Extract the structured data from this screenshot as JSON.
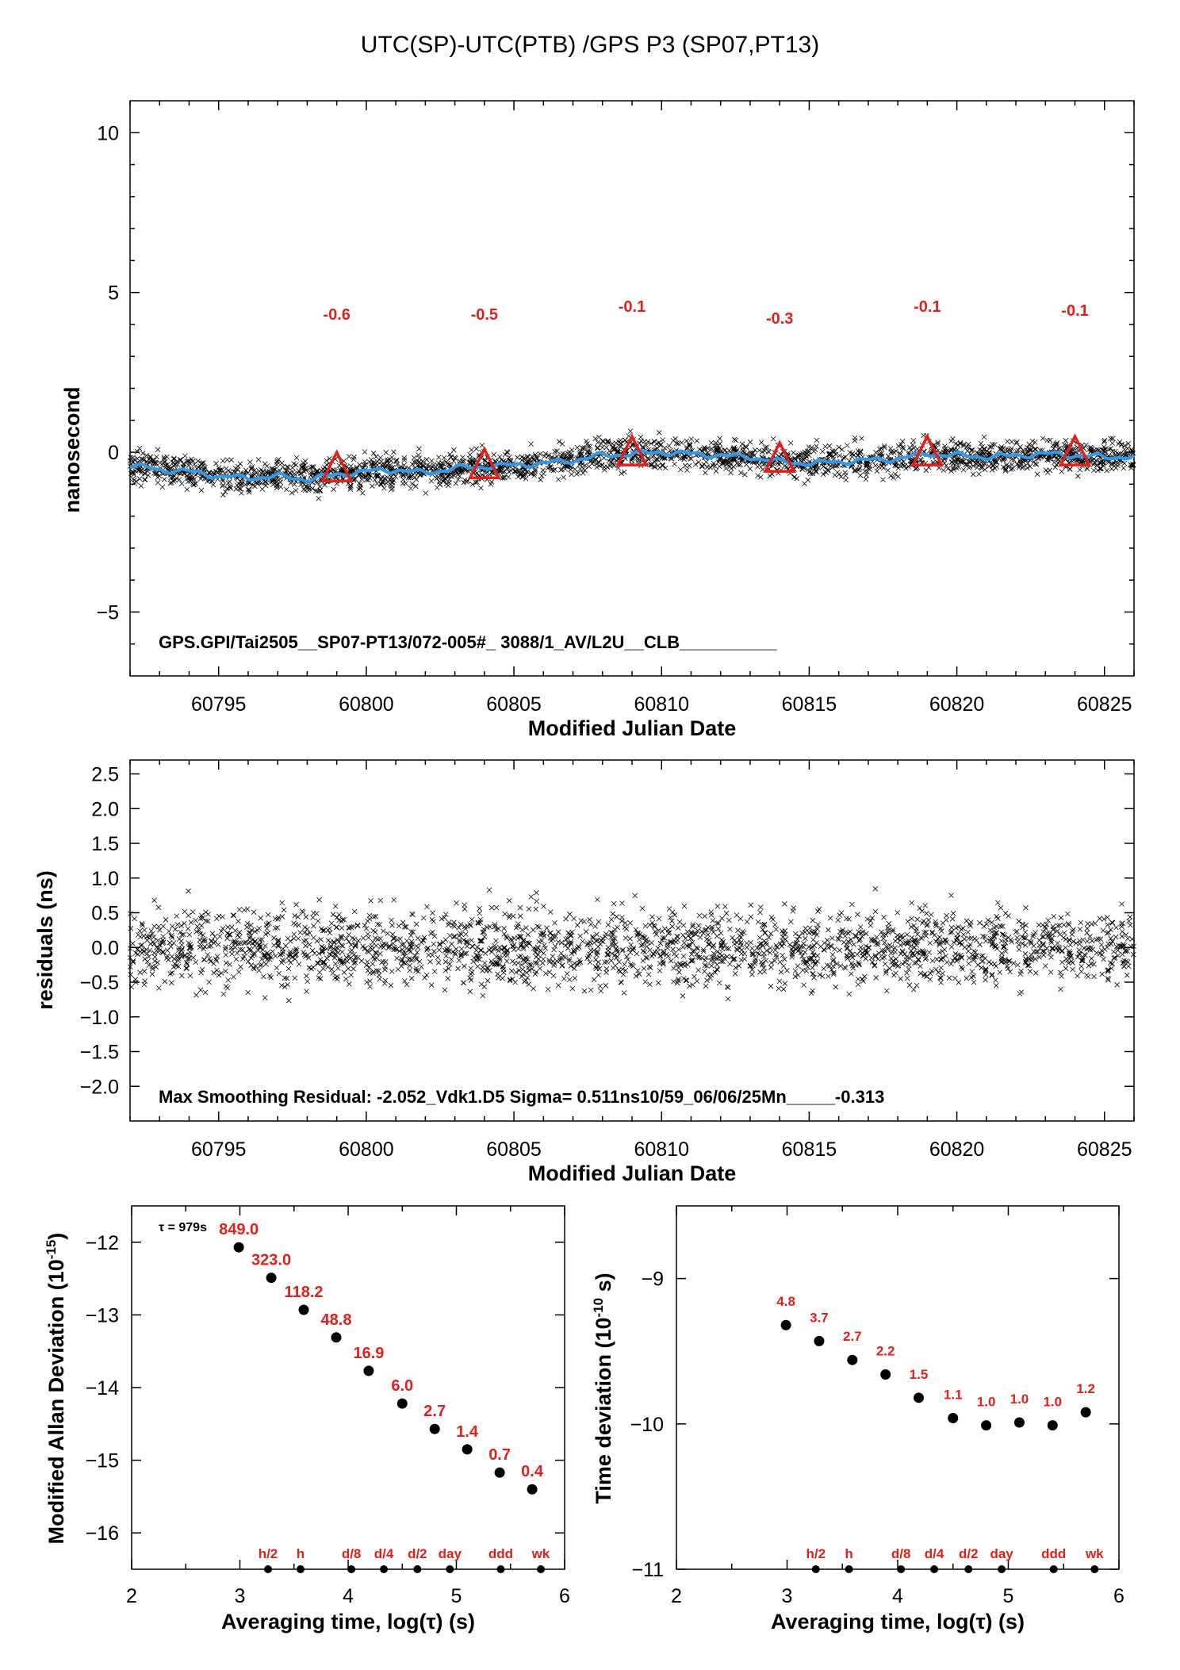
{
  "title": "UTC(SP)-UTC(PTB)  /GPS  P3  (SP07,PT13)",
  "colors": {
    "accent": "#e0201a",
    "smooth": "#3399e6",
    "points": "#000000"
  },
  "panel1": {
    "ylabel": "nanosecond",
    "xlabel": "Modified Julian Date",
    "yticks": [
      "10",
      "5",
      "0",
      "−5"
    ],
    "xticks": [
      "60795",
      "60800",
      "60805",
      "60810",
      "60815",
      "60820",
      "60825"
    ],
    "annotation": "GPS.GPI/Tai2505__SP07-PT13/072-005#_  3088/1_AV/L2U__CLB__________",
    "markers": [
      "-0.6",
      "-0.5",
      "-0.1",
      "-0.3",
      "-0.1",
      "-0.1"
    ]
  },
  "panel2": {
    "ylabel": "residuals (ns)",
    "xlabel": "Modified Julian Date",
    "yticks": [
      "2.5",
      "2.0",
      "1.5",
      "1.0",
      "0.5",
      "0.0",
      "−0.5",
      "−1.0",
      "−1.5",
      "−2.0"
    ],
    "xticks": [
      "60795",
      "60800",
      "60805",
      "60810",
      "60815",
      "60820",
      "60825"
    ],
    "annotation": "Max Smoothing Residual: -2.052_Vdk1.D5  Sigma= 0.511ns10/59_06/06/25Mn_____-0.313"
  },
  "panel3": {
    "ylabel_main": "Modified Allan Deviation (10",
    "ylabel_exp": "-15",
    "ylabel_end": ")",
    "xlabel": "Averaging time, log(τ) (s)",
    "tau_label": "τ = 979s",
    "yticks": [
      "−12",
      "−13",
      "−14",
      "−15",
      "−16"
    ],
    "xticks": [
      "2",
      "3",
      "4",
      "5",
      "6"
    ],
    "point_labels": [
      "849.0",
      "323.0",
      "118.2",
      "48.8",
      "16.9",
      "6.0",
      "2.7",
      "1.4",
      "0.7",
      "0.4"
    ],
    "time_markers": [
      "h/2",
      "h",
      "d/8",
      "d/4",
      "d/2",
      "day",
      "ddd",
      "wk"
    ]
  },
  "panel4": {
    "ylabel_main": "Time deviation (10",
    "ylabel_exp": "-10",
    "ylabel_end": " s)",
    "xlabel": "Averaging time, log(τ) (s)",
    "yticks": [
      "−9",
      "−10",
      "−11"
    ],
    "xticks": [
      "2",
      "3",
      "4",
      "5",
      "6"
    ],
    "point_labels": [
      "4.8",
      "3.7",
      "2.7",
      "2.2",
      "1.5",
      "1.1",
      "1.0",
      "1.0",
      "1.0",
      "1.2"
    ],
    "time_markers": [
      "h/2",
      "h",
      "d/8",
      "d/4",
      "d/2",
      "day",
      "ddd",
      "wk"
    ]
  },
  "chart_data": [
    {
      "type": "scatter",
      "title": "UTC(SP)-UTC(PTB)  /GPS  P3  (SP07,PT13)",
      "xlabel": "Modified Julian Date",
      "ylabel": "nanosecond",
      "xlim": [
        60792,
        60826
      ],
      "ylim": [
        -7,
        11
      ],
      "grid": false,
      "points_description": "dense scatter around smooth curve, spread about ±0.6 ns",
      "smoothed_curve": {
        "x": [
          60792,
          60793,
          60794,
          60795,
          60796,
          60797,
          60798,
          60799,
          60800,
          60801,
          60802,
          60803,
          60804,
          60805,
          60806,
          60807,
          60808,
          60809,
          60810,
          60811,
          60812,
          60813,
          60814,
          60815,
          60816,
          60817,
          60818,
          60819,
          60820,
          60821,
          60822,
          60823,
          60824,
          60825,
          60826
        ],
        "y": [
          -0.4,
          -0.55,
          -0.6,
          -0.75,
          -0.8,
          -0.75,
          -0.85,
          -0.7,
          -0.6,
          -0.55,
          -0.65,
          -0.5,
          -0.45,
          -0.4,
          -0.35,
          -0.25,
          -0.1,
          -0.05,
          0.0,
          -0.05,
          -0.1,
          -0.15,
          -0.3,
          -0.35,
          -0.3,
          -0.25,
          -0.2,
          -0.05,
          -0.1,
          -0.15,
          -0.1,
          -0.05,
          -0.1,
          -0.15,
          -0.15
        ]
      },
      "markers": {
        "x": [
          60799,
          60804,
          60809,
          60814,
          60819,
          60824
        ],
        "y": [
          -0.6,
          -0.5,
          -0.1,
          -0.3,
          -0.1,
          -0.1
        ]
      }
    },
    {
      "type": "scatter",
      "xlabel": "Modified Julian Date",
      "ylabel": "residuals (ns)",
      "xlim": [
        60792,
        60826
      ],
      "ylim": [
        -2.5,
        2.7
      ],
      "points_description": "residual scatter roughly -1.8..2.0 ns, sigma 0.511 ns"
    },
    {
      "type": "scatter",
      "xlabel": "Averaging time, log(τ) (s)",
      "ylabel": "Modified Allan Deviation (10^-15)",
      "xlim": [
        2,
        6
      ],
      "ylim": [
        -16.5,
        -11.5
      ],
      "x": [
        2.99,
        3.29,
        3.59,
        3.89,
        4.19,
        4.5,
        4.8,
        5.1,
        5.4,
        5.7
      ],
      "y": [
        -12.07,
        -12.49,
        -12.93,
        -13.31,
        -13.77,
        -14.22,
        -14.57,
        -14.85,
        -15.17,
        -15.4
      ],
      "labels": [
        "849.0",
        "323.0",
        "118.2",
        "48.8",
        "16.9",
        "6.0",
        "2.7",
        "1.4",
        "0.7",
        "0.4"
      ],
      "time_markers": {
        "x": [
          3.26,
          3.56,
          4.03,
          4.33,
          4.64,
          4.94,
          5.41,
          5.78
        ],
        "labels": [
          "h/2",
          "h",
          "d/8",
          "d/4",
          "d/2",
          "day",
          "ddd",
          "wk"
        ]
      }
    },
    {
      "type": "scatter",
      "xlabel": "Averaging time, log(τ) (s)",
      "ylabel": "Time deviation (10^-10 s)",
      "xlim": [
        2,
        6
      ],
      "ylim": [
        -11,
        -8.5
      ],
      "x": [
        2.99,
        3.29,
        3.59,
        3.89,
        4.19,
        4.5,
        4.8,
        5.1,
        5.4,
        5.7
      ],
      "y": [
        -9.32,
        -9.43,
        -9.56,
        -9.66,
        -9.82,
        -9.96,
        -10.01,
        -9.99,
        -10.01,
        -9.92
      ],
      "labels": [
        "4.8",
        "3.7",
        "2.7",
        "2.2",
        "1.5",
        "1.1",
        "1.0",
        "1.0",
        "1.0",
        "1.2"
      ],
      "time_markers": {
        "x": [
          3.26,
          3.56,
          4.03,
          4.33,
          4.64,
          4.94,
          5.41,
          5.78
        ],
        "labels": [
          "h/2",
          "h",
          "d/8",
          "d/4",
          "d/2",
          "day",
          "ddd",
          "wk"
        ]
      }
    }
  ]
}
